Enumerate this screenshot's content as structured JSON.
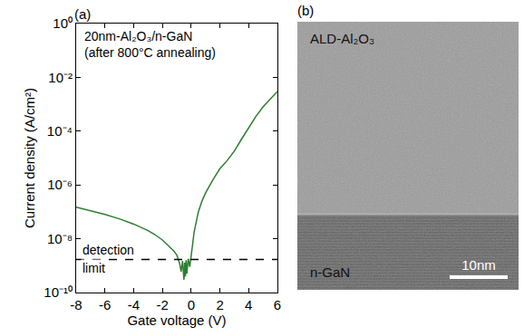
{
  "chart_data": {
    "type": "line",
    "panel": "(a)",
    "annotations": [
      "20nm-Al₂O₃/n-GaN",
      "(after 800°C annealing)"
    ],
    "x_label": "Gate voltage (V)",
    "y_label": "Current density (A/cm²)",
    "log": "y",
    "grid": false,
    "color": "#2e7d32",
    "x": [
      -8,
      -7,
      -6,
      -5,
      -4,
      -3,
      -2.5,
      -2,
      -1.5,
      -1.2,
      -1.0,
      -0.9,
      -0.8,
      -0.7,
      -0.6,
      -0.5,
      -0.45,
      -0.4,
      -0.35,
      -0.3,
      -0.2,
      -0.1,
      0,
      0.1,
      0.2,
      0.35,
      0.5,
      0.75,
      1,
      1.5,
      2,
      2.5,
      3,
      3.5,
      4,
      4.5,
      5,
      5.5,
      6
    ],
    "values": [
      1.5e-07,
      1.1e-07,
      8e-08,
      5.5e-08,
      3.5e-08,
      2e-08,
      1.4e-08,
      9e-09,
      5e-09,
      3.5e-09,
      2.5e-09,
      1.8e-09,
      1.2e-09,
      6e-10,
      1.5e-09,
      3e-10,
      1.3e-09,
      4e-10,
      1.6e-09,
      5e-10,
      1.8e-09,
      9e-10,
      3e-09,
      6e-09,
      1.7e-08,
      4.5e-08,
      1e-07,
      2.5e-07,
      5e-07,
      1.5e-06,
      4e-06,
      8e-06,
      1.8e-05,
      5e-05,
      0.00014,
      0.00035,
      0.0008,
      0.0016,
      0.003
    ],
    "detection_limit": {
      "value": 1.7e-09,
      "labels": [
        "detection",
        "limit"
      ],
      "line_style": "dash"
    },
    "xlim": [
      -8,
      6
    ],
    "xticks": [
      -8,
      -6,
      -4,
      -2,
      0,
      2,
      4,
      6
    ],
    "ylim": [
      1e-10,
      1
    ],
    "yticks": [
      {
        "value": 1e-10,
        "label": "10⁻¹⁰"
      },
      {
        "value": 1e-08,
        "label": "10⁻⁸"
      },
      {
        "value": 1e-06,
        "label": "10⁻⁶"
      },
      {
        "value": 0.0001,
        "label": "10⁻⁴"
      },
      {
        "value": 0.01,
        "label": "10⁻²"
      },
      {
        "value": 1,
        "label": "10⁰"
      }
    ]
  },
  "micrograph": {
    "panel": "(b)",
    "upper_layer": "ALD-Al₂O₃",
    "lower_layer": "n-GaN",
    "scale_bar": "10nm"
  }
}
